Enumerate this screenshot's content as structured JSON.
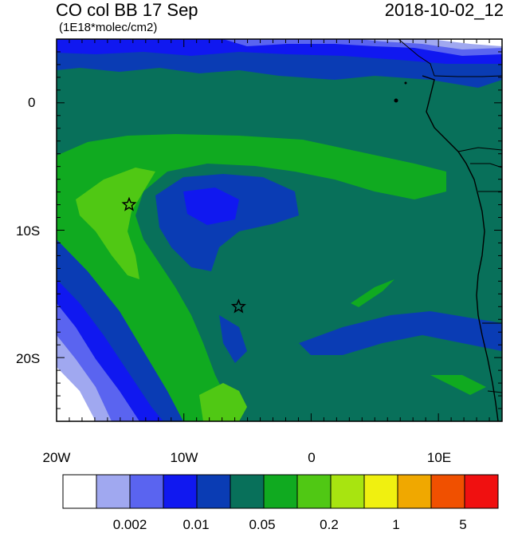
{
  "header": {
    "title": "CO col BB 17 Sep",
    "units": "(1E18*molec/cm2)",
    "datestamp": "2018-10-02_12"
  },
  "axes": {
    "x_ticks": [
      "20W",
      "10W",
      "0",
      "10E"
    ],
    "y_ticks": [
      "0",
      "10S",
      "20S"
    ]
  },
  "colorbar": {
    "colors": [
      "#ffffff",
      "#a0a8f0",
      "#5a64f0",
      "#1018f0",
      "#0a3cb4",
      "#08705a",
      "#10aa20",
      "#50c814",
      "#a8e410",
      "#f0f010",
      "#f0a800",
      "#f05000",
      "#f01010"
    ],
    "labels": [
      "0.002",
      "0.01",
      "0.05",
      "0.2",
      "1",
      "5"
    ]
  },
  "markers": [
    {
      "name": "star-marker",
      "lon": -14.3,
      "lat": -8.0
    },
    {
      "name": "star-marker",
      "lon": -5.7,
      "lat": -16.0
    }
  ]
}
